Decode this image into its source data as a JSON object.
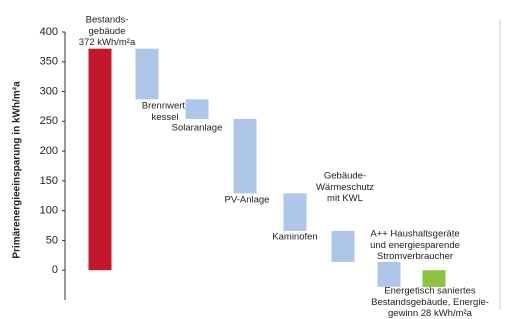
{
  "chart_data": {
    "type": "waterfall",
    "y_label": "Primärenergieeinsparung in kWh/m²a",
    "categories": [
      [
        "Bestands-",
        "gebäude",
        "372 kWh/m²a"
      ],
      [
        "Brennwert-",
        "kessel"
      ],
      [
        "Solaranlage"
      ],
      [
        "PV-Anlage"
      ],
      [
        "Kaminofen"
      ],
      [
        "Gebäude-",
        "Wärmeschutz",
        "mit KWL"
      ],
      [
        "A++ Haushaltsgeräte",
        "und energiesparende",
        "Stromverbraucher"
      ],
      [
        "Energetisch saniertes",
        "Bestandsgebäude, Energie-",
        "gewinn 28 kWh/m²a"
      ]
    ],
    "values": [
      372,
      -85,
      -33,
      -125,
      -63,
      -52,
      -42,
      -28
    ],
    "measure": [
      "absolute",
      "relative",
      "relative",
      "relative",
      "relative",
      "relative",
      "relative",
      "absolute"
    ],
    "colors": [
      "#c3172c",
      "#adc6ea",
      "#adc6ea",
      "#adc6ea",
      "#adc6ea",
      "#adc6ea",
      "#adc6ea",
      "#8cc43f"
    ],
    "ylim": [
      -50,
      400
    ],
    "yticks": [
      0,
      50,
      100,
      150,
      200,
      250,
      300,
      350,
      400
    ]
  }
}
